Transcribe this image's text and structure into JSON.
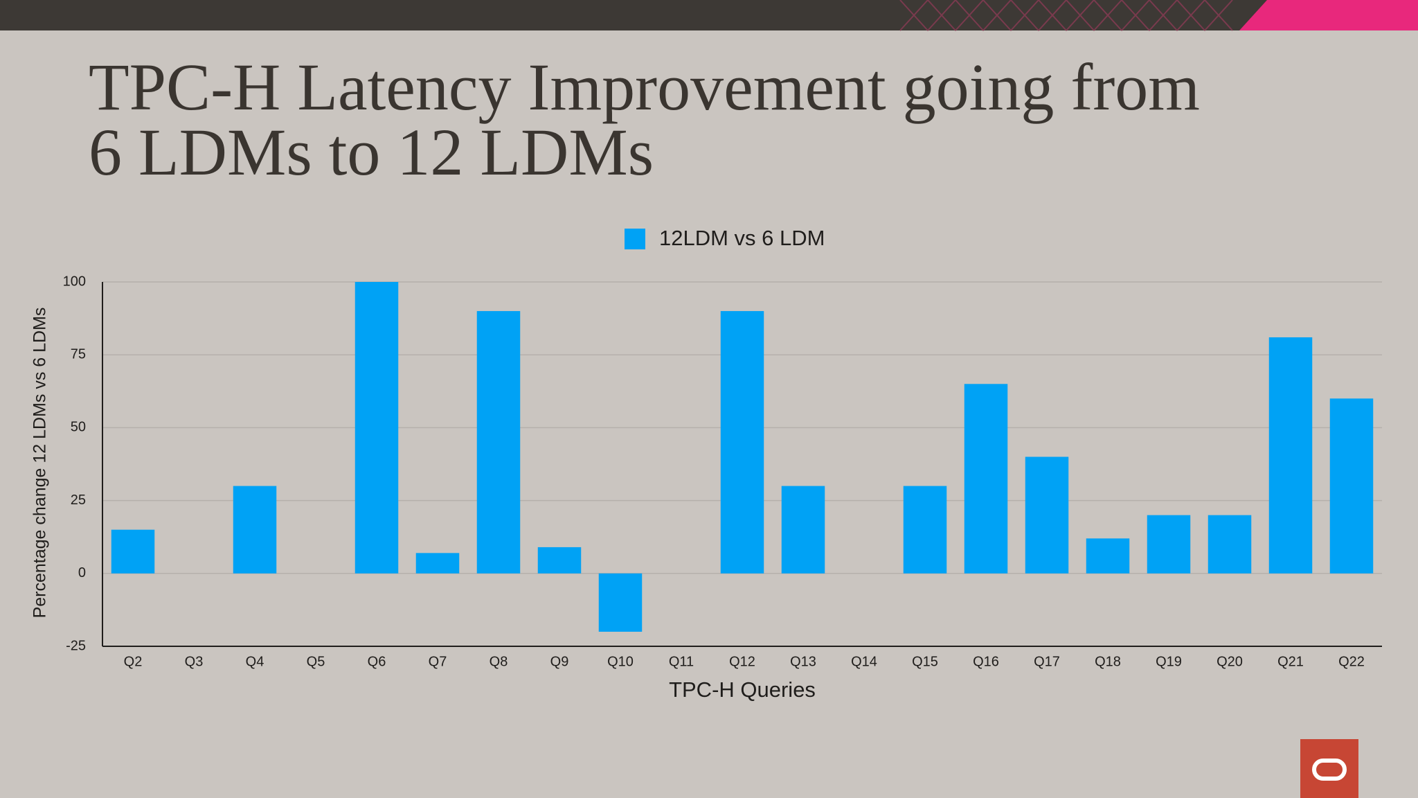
{
  "chart_data": {
    "type": "bar",
    "title": [
      "TPC-H Latency Improvement going from",
      "6 LDMs to 12 LDMs"
    ],
    "x_label": "TPC-H Queries",
    "y_label": "Percentage change 12 LDMs vs 6 LDMs",
    "categories": [
      "Q2",
      "Q3",
      "Q4",
      "Q5",
      "Q6",
      "Q7",
      "Q8",
      "Q9",
      "Q10",
      "Q11",
      "Q12",
      "Q13",
      "Q14",
      "Q15",
      "Q16",
      "Q17",
      "Q18",
      "Q19",
      "Q20",
      "Q21",
      "Q22"
    ],
    "series": [
      {
        "name": "12LDM vs 6 LDM",
        "color": "#00a2f5",
        "values": [
          15,
          0,
          30,
          0,
          100,
          7,
          90,
          9,
          -20,
          0,
          90,
          30,
          0,
          30,
          65,
          40,
          12,
          20,
          20,
          81,
          60
        ]
      }
    ],
    "ylim": [
      -25,
      100
    ],
    "yticks": [
      -25,
      0,
      25,
      50,
      75,
      100
    ],
    "grid": true,
    "legend": "top"
  }
}
